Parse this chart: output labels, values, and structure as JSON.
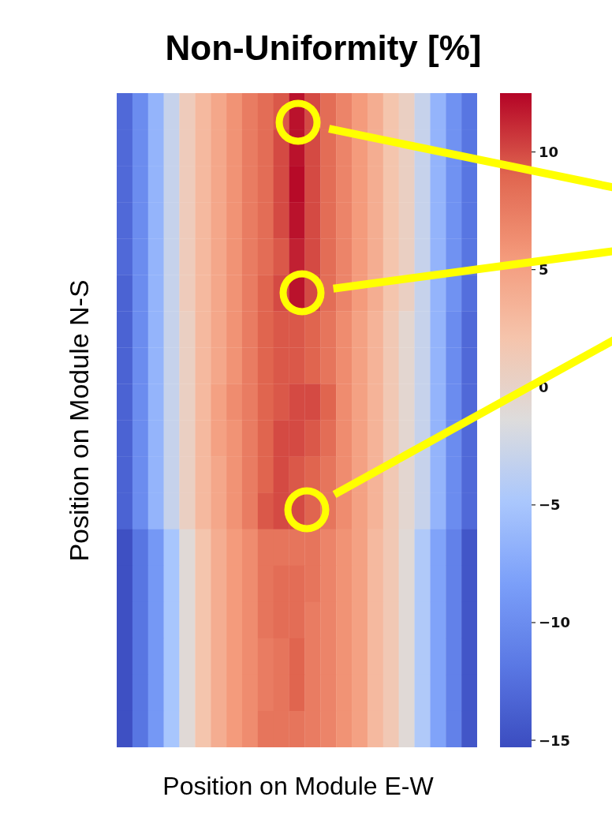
{
  "chart_data": {
    "type": "heatmap",
    "title": "Non-Uniformity [%]",
    "xlabel": "Position on Module E-W",
    "ylabel": "Position on Module N-S",
    "categories": [
      null,
      null,
      null,
      null,
      null,
      null,
      null,
      null,
      null,
      null,
      null,
      null,
      null,
      null,
      null,
      null,
      null,
      null,
      null,
      null,
      null,
      null,
      null
    ],
    "y_categories": [
      null,
      null,
      null,
      null,
      null,
      null,
      null,
      null,
      null,
      null,
      null,
      null,
      null,
      null,
      null,
      null,
      null,
      null
    ],
    "cells": [
      [
        -13,
        -10,
        -6.5,
        -3,
        1,
        3,
        4.5,
        6,
        7.5,
        8.5,
        9.5,
        12,
        10,
        8.5,
        7,
        5.5,
        4,
        2,
        0.5,
        -3,
        -6.5,
        -9.5,
        -12
      ],
      [
        -13,
        -10,
        -6.5,
        -3,
        1,
        3,
        4.5,
        6,
        7.5,
        8.5,
        10,
        12,
        10,
        8.5,
        7,
        5.5,
        4,
        2,
        0.5,
        -3,
        -6.5,
        -9.5,
        -12
      ],
      [
        -13,
        -10,
        -6.5,
        -3,
        1,
        3,
        4.5,
        6,
        7.5,
        8.5,
        10,
        12.3,
        10,
        8.5,
        7,
        5.5,
        4,
        2,
        0.5,
        -3,
        -6.5,
        -9.5,
        -12
      ],
      [
        -13,
        -10,
        -6.5,
        -3,
        1,
        3,
        4.5,
        6,
        7.5,
        8.5,
        10,
        12,
        10,
        8.5,
        7,
        5.5,
        4,
        2,
        0.5,
        -3,
        -6.5,
        -9.5,
        -12
      ],
      [
        -13,
        -10,
        -6.5,
        -3,
        1,
        3,
        4.5,
        6,
        7.5,
        8.5,
        9.5,
        11.5,
        10,
        8.5,
        7,
        5.5,
        4,
        2,
        0.5,
        -3,
        -6.5,
        -9.5,
        -12
      ],
      [
        -13.5,
        -10,
        -6.5,
        -3,
        1,
        3,
        4.5,
        6,
        7.5,
        9,
        10,
        12,
        10,
        8.5,
        7,
        5.5,
        4,
        2,
        0.5,
        -3,
        -6.5,
        -9.5,
        -12.5
      ],
      [
        -13.5,
        -10,
        -6.5,
        -3,
        0.5,
        3,
        4.5,
        6,
        7.5,
        9,
        9.5,
        9.5,
        9,
        8,
        6.5,
        5,
        3.5,
        1.5,
        -0.5,
        -3,
        -6.5,
        -10,
        -13
      ],
      [
        -13.5,
        -10,
        -6.5,
        -3,
        0.5,
        3,
        4.5,
        6,
        7.5,
        9,
        9.5,
        9.5,
        9,
        8,
        6.5,
        5,
        3.5,
        1.5,
        -0.5,
        -3,
        -6.5,
        -10,
        -13
      ],
      [
        -13.5,
        -10,
        -6.5,
        -3,
        0.5,
        3,
        5,
        6.5,
        7.5,
        9,
        9.5,
        10,
        10,
        9,
        6.5,
        5,
        3.5,
        1.5,
        -0.5,
        -3,
        -6.5,
        -10,
        -13
      ],
      [
        -13.5,
        -10,
        -6.5,
        -3,
        0.5,
        3,
        5,
        6,
        7.5,
        9,
        10,
        10,
        9.5,
        8.5,
        6.5,
        5,
        3.5,
        1.5,
        -0.5,
        -3,
        -6.5,
        -10,
        -13
      ],
      [
        -13.5,
        -10,
        -6.5,
        -3,
        0.5,
        3,
        4.5,
        6,
        7.5,
        9,
        10,
        9.5,
        9,
        8,
        6.5,
        5,
        3.5,
        1.5,
        -0.5,
        -3,
        -6.5,
        -10,
        -13
      ],
      [
        -13.5,
        -10,
        -6.5,
        -3,
        0.5,
        3,
        4.5,
        6,
        7.5,
        9.5,
        10,
        10,
        9,
        8,
        6.5,
        5,
        3.5,
        1.5,
        -0.5,
        -3,
        -6.5,
        -10,
        -13
      ],
      [
        -15,
        -12,
        -9,
        -5,
        -1,
        2,
        4,
        5.5,
        6.5,
        8,
        8,
        8,
        8,
        7,
        6,
        5,
        3,
        1.5,
        -1,
        -4.5,
        -8,
        -11,
        -14.5
      ],
      [
        -15,
        -12,
        -9,
        -5,
        -1,
        2,
        4,
        5.5,
        6.5,
        8,
        8.5,
        8.5,
        8,
        7,
        6,
        5,
        3,
        1.5,
        -1,
        -4.5,
        -8,
        -11,
        -14.5
      ],
      [
        -15,
        -12,
        -9,
        -5,
        -1,
        2,
        4,
        5.5,
        6.5,
        8,
        8.5,
        8.5,
        7.5,
        7,
        6,
        5,
        3,
        1.5,
        -1,
        -4.5,
        -8,
        -11,
        -14.5
      ],
      [
        -15,
        -12,
        -9,
        -5,
        -1,
        2,
        4,
        5.5,
        6.5,
        7.5,
        8,
        9,
        7.5,
        7,
        6,
        5,
        3,
        1.5,
        -1,
        -4.5,
        -8,
        -11,
        -14.5
      ],
      [
        -15,
        -12,
        -9,
        -5,
        -1,
        2,
        4,
        5.5,
        6.5,
        7.5,
        8,
        9,
        7.5,
        7,
        6,
        5,
        3,
        1.5,
        -1,
        -4.5,
        -8,
        -11,
        -14.5
      ],
      [
        -15,
        -12,
        -9,
        -5,
        -1,
        2,
        4,
        5.5,
        6.5,
        8,
        8,
        8,
        7.5,
        7,
        6,
        5,
        3,
        1.5,
        -1,
        -4.5,
        -8,
        -11,
        -14.5
      ]
    ],
    "clim": [
      -15.3,
      12.5
    ],
    "cticks": [
      -15,
      -10,
      -5,
      0,
      5,
      10
    ],
    "tick_labels": false
  }
}
